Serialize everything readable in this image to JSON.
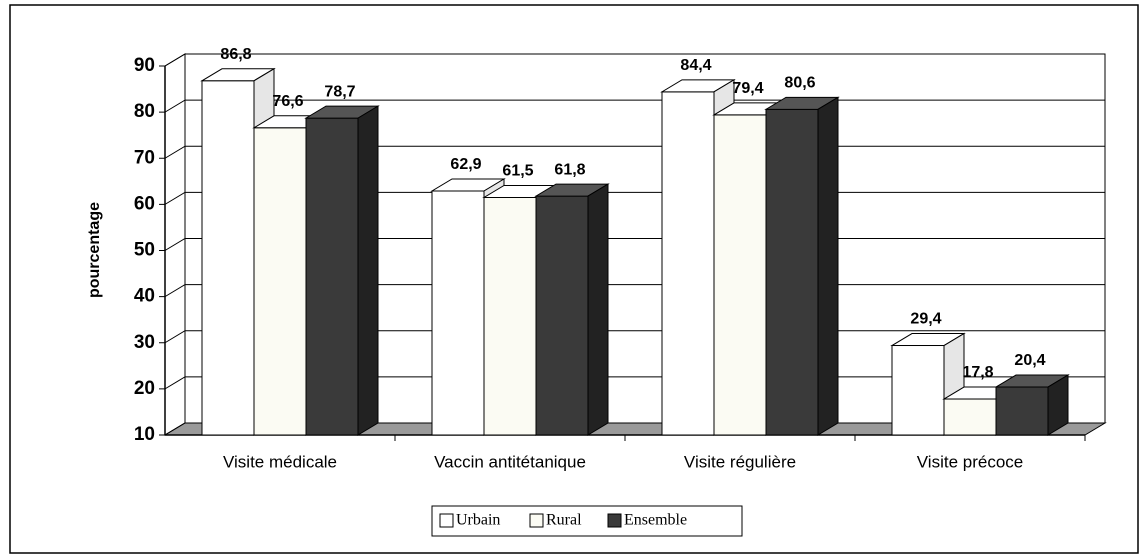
{
  "chart_data": {
    "type": "bar3d",
    "y_label": "pourcentage",
    "categories": [
      "Visite médicale",
      "Vaccin antitétanique",
      "Visite régulière",
      "Visite précoce"
    ],
    "series": [
      {
        "name": "Urbain",
        "color": "#ffffff",
        "values": [
          86.8,
          62.9,
          84.4,
          29.4
        ],
        "value_labels": [
          "86,8",
          "62,9",
          "84,4",
          "29,4"
        ]
      },
      {
        "name": "Rural",
        "color": "#fbfbf3",
        "values": [
          76.6,
          61.5,
          79.4,
          17.8
        ],
        "value_labels": [
          "76,6",
          "61,5",
          "79,4",
          "17,8"
        ]
      },
      {
        "name": "Ensemble",
        "color": "#3a3a3a",
        "values": [
          78.7,
          61.8,
          80.6,
          20.4
        ],
        "value_labels": [
          "78,7",
          "61,8",
          "80,6",
          "20,4"
        ]
      }
    ],
    "ylim": [
      10,
      90
    ],
    "yticks": [
      10,
      20,
      30,
      40,
      50,
      60,
      70,
      80,
      90
    ],
    "grid": true,
    "legend": "bottom"
  }
}
